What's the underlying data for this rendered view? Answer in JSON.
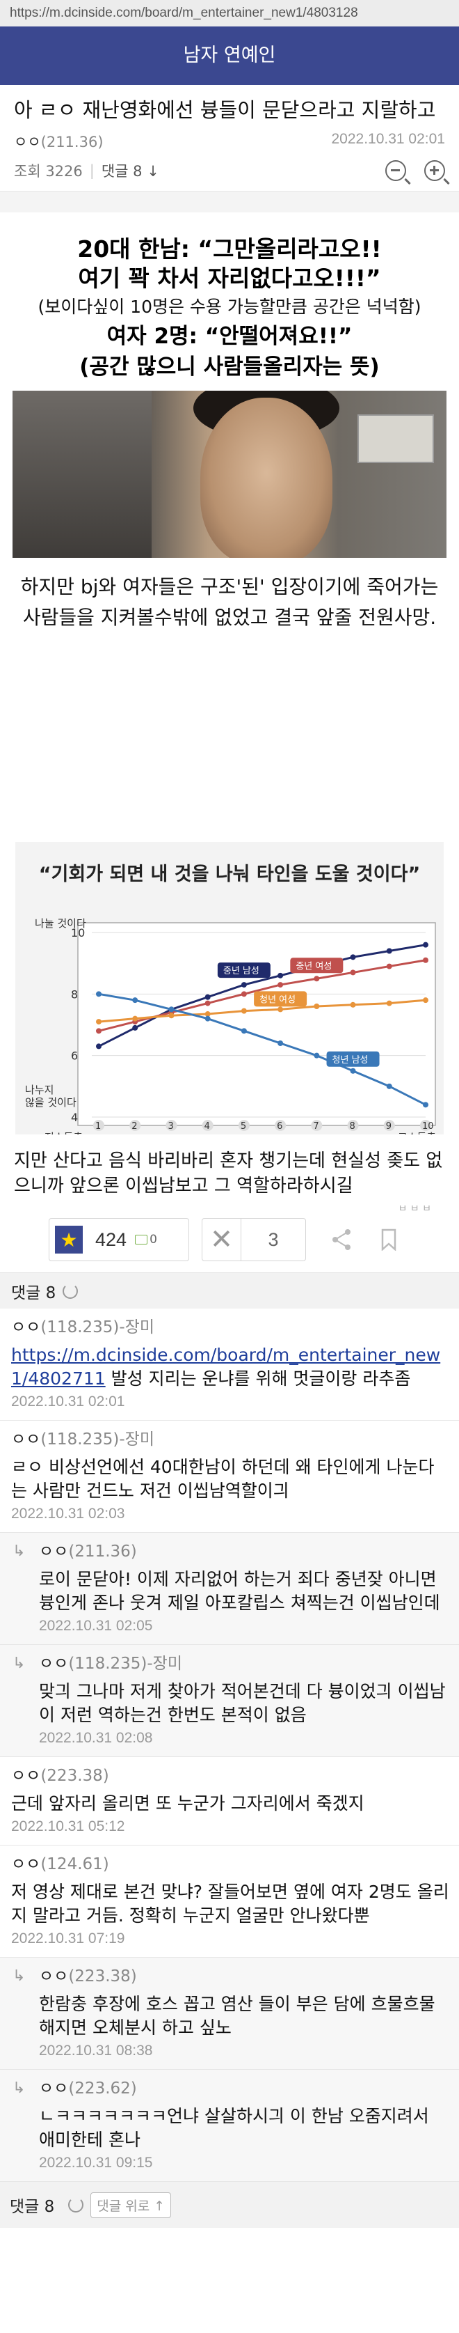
{
  "browser": {
    "url": "https://m.dcinside.com/board/m_entertainer_new1/4803128"
  },
  "header": {
    "gallery_title": "남자 연예인"
  },
  "post": {
    "title": "아 ㄹㅇ 재난영화에선 븅들이 문닫으라고 지랄하고",
    "author": "ㅇㅇ",
    "author_ip": "(211.36)",
    "date": "2022.10.31 02:01",
    "views_label": "조회 3226",
    "comments_label": "댓글 8",
    "caption": {
      "line1": "20대 한남: “그만올리라고오!!",
      "line2": "여기 꽉 차서 자리없다고오!!!”",
      "line3": "(보이다싶이 10명은 수용 가능할만큼 공간은 넉넉함)",
      "line4": "여자 2명: “안떨어져요!!”",
      "line5": "(공간 많으니 사람들올리자는 뜻)"
    },
    "paragraph1": "하지만 bj와 여자들은 구조'된' 입장이기에 죽어가는 사람들을 지켜볼수밖에 없었고 결국 앞줄 전원사망.",
    "paragraph2": "지만 산다고 음식 바리바리 혼자 챙기는데 현실성 좆도 없으니까 앞으론 이씹남보고 그 역할하라하시길",
    "watermark": "ㅂ ㅂ ㅂ"
  },
  "actions": {
    "recommend_count": "424",
    "fixed_recommend_count": "0",
    "nonrecommend_count": "3"
  },
  "comments_header": {
    "label": "댓글 8"
  },
  "comments": [
    {
      "author": "ㅇㅇ",
      "ip": "(118.235)-장미",
      "link": "https://m.dcinside.com/board/m_entertainer_new1/4802711",
      "text": " 발성 지리는 운냐를 위해 멋글이랑 라추좀",
      "date": "2022.10.31 02:01",
      "reply": false
    },
    {
      "author": "ㅇㅇ",
      "ip": "(118.235)-장미",
      "link": "",
      "text": "ㄹㅇ 비상선언에선 40대한남이 하던데 왜 타인에게 나눈다는 사람만 건드노 저건 이씹남역할이긔",
      "date": "2022.10.31 02:03",
      "reply": false
    },
    {
      "author": "ㅇㅇ",
      "ip": "(211.36)",
      "link": "",
      "text": "로이 문닫아! 이제 자리없어 하는거 죄다 중년잦 아니면 븅인게 존나 웃겨 제일 아포칼립스 쳐찍는건 이씹남인데",
      "date": "2022.10.31 02:05",
      "reply": true
    },
    {
      "author": "ㅇㅇ",
      "ip": "(118.235)-장미",
      "link": "",
      "text": "맞긔 그나마 저게 찾아가 적어본건데 다 븅이었긔 이씹남이 저런 역하는건 한번도 본적이 없음",
      "date": "2022.10.31 02:08",
      "reply": true
    },
    {
      "author": "ㅇㅇ",
      "ip": "(223.38)",
      "link": "",
      "text": "근데 앞자리 올리면 또 누군가 그자리에서 죽겠지",
      "date": "2022.10.31 05:12",
      "reply": false
    },
    {
      "author": "ㅇㅇ",
      "ip": "(124.61)",
      "link": "",
      "text": "저 영상 제대로 본건 맞냐? 잘들어보면 옆에 여자 2명도 올리지 말라고 거듬. 정확히 누군지 얼굴만 안나왔다뿐",
      "date": "2022.10.31 07:19",
      "reply": false
    },
    {
      "author": "ㅇㅇ",
      "ip": "(223.38)",
      "link": "",
      "text": "한람충 후장에 호스 꼽고 염산 들이 부은 담에 흐물흐물해지면 오체분시 하고 싶노",
      "date": "2022.10.31 08:38",
      "reply": true
    },
    {
      "author": "ㅇㅇ",
      "ip": "(223.62)",
      "link": "",
      "text": "ㄴㅋㅋㅋㅋㅋㅋㅋ언냐 살살하시긔 이 한남 오줌지려서 애미한테 혼나",
      "date": "2022.10.31 09:15",
      "reply": true
    }
  ],
  "footer": {
    "comments_label": "댓글 8",
    "up_label": "댓글 위로"
  },
  "chart_data": {
    "type": "line",
    "title": "“기회가 되면 내 것을 나눠 타인을 도울 것이다”",
    "ylabel_top": "나눌 것이다",
    "ylabel_bottom": "나누지 않을 것이다",
    "xlabel_left": "저소득층",
    "xlabel_right": "고소득층",
    "x": [
      1,
      2,
      3,
      4,
      5,
      6,
      7,
      8,
      9,
      10
    ],
    "ylim": [
      4,
      10
    ],
    "yticks": [
      4,
      6,
      8,
      10
    ],
    "series": [
      {
        "name": "중년 남성",
        "color": "#1f2a6b",
        "values": [
          6.3,
          6.9,
          7.5,
          7.9,
          8.3,
          8.6,
          8.9,
          9.2,
          9.4,
          9.6
        ]
      },
      {
        "name": "중년 여성",
        "color": "#c0504d",
        "values": [
          6.8,
          7.1,
          7.4,
          7.7,
          8.0,
          8.3,
          8.5,
          8.7,
          8.9,
          9.1
        ]
      },
      {
        "name": "청년 여성",
        "color": "#e8943a",
        "values": [
          7.1,
          7.2,
          7.3,
          7.35,
          7.45,
          7.5,
          7.6,
          7.65,
          7.7,
          7.8
        ]
      },
      {
        "name": "청년 남성",
        "color": "#3a78b8",
        "values": [
          8.0,
          7.8,
          7.5,
          7.2,
          6.8,
          6.4,
          6.0,
          5.5,
          5.0,
          4.4
        ]
      }
    ]
  }
}
